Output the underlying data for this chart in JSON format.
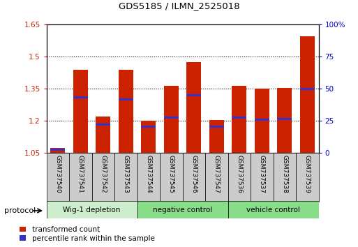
{
  "title": "GDS5185 / ILMN_2525018",
  "samples": [
    "GSM737540",
    "GSM737541",
    "GSM737542",
    "GSM737543",
    "GSM737544",
    "GSM737545",
    "GSM737546",
    "GSM737547",
    "GSM737536",
    "GSM737537",
    "GSM737538",
    "GSM737539"
  ],
  "bar_heights": [
    1.075,
    1.44,
    1.22,
    1.44,
    1.2,
    1.365,
    1.475,
    1.205,
    1.365,
    1.35,
    1.355,
    1.595
  ],
  "blue_markers": [
    1.065,
    1.31,
    1.185,
    1.3,
    1.175,
    1.215,
    1.32,
    1.175,
    1.215,
    1.205,
    1.21,
    1.35
  ],
  "ylim_left": [
    1.05,
    1.65
  ],
  "ylim_right": [
    0,
    100
  ],
  "y_ticks_left": [
    1.05,
    1.2,
    1.35,
    1.5,
    1.65
  ],
  "y_ticks_right": [
    0,
    25,
    50,
    75,
    100
  ],
  "y_tick_labels_left": [
    "1.05",
    "1.2",
    "1.35",
    "1.5",
    "1.65"
  ],
  "y_tick_labels_right": [
    "0",
    "25",
    "50",
    "75",
    "100%"
  ],
  "bar_color": "#cc2200",
  "blue_color": "#3333cc",
  "bar_width": 0.65,
  "group_labels": [
    "Wig-1 depletion",
    "negative control",
    "vehicle control"
  ],
  "group_ranges": [
    [
      0,
      3
    ],
    [
      4,
      7
    ],
    [
      8,
      11
    ]
  ],
  "group_color_light": "#cceecc",
  "group_color_mid": "#88dd88",
  "protocol_label": "protocol",
  "legend_red": "transformed count",
  "legend_blue": "percentile rank within the sample",
  "tick_color_left": "#cc2200",
  "tick_color_right": "#0000cc",
  "sample_box_color": "#cccccc"
}
